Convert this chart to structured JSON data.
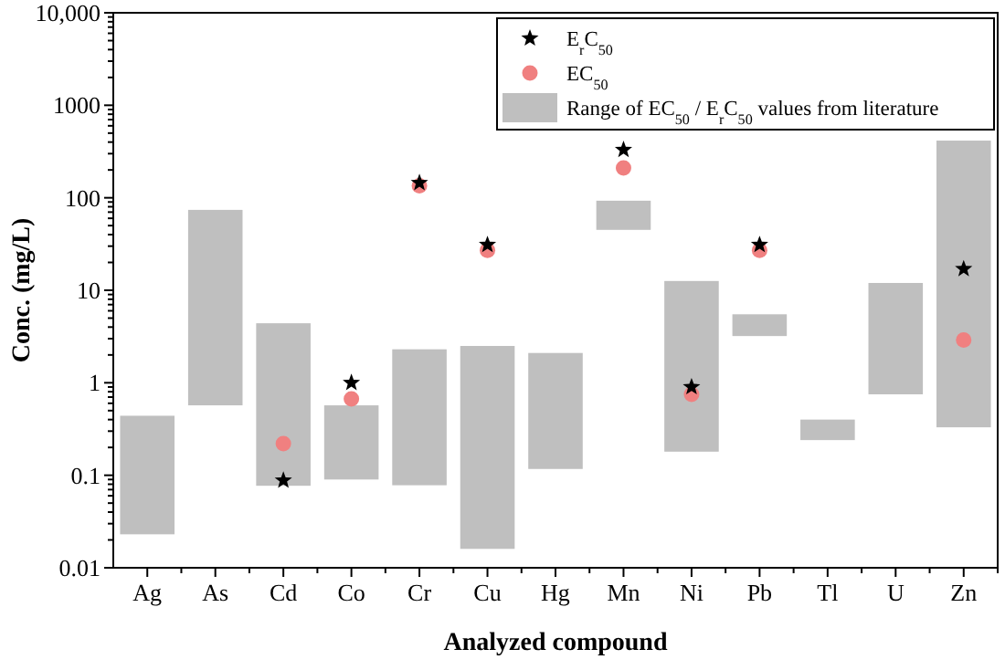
{
  "chart_data": {
    "type": "bar",
    "xlabel": "Analyzed compound",
    "ylabel": "Conc. (mg/L)",
    "log": true,
    "legend": "top right",
    "grid": false,
    "categories": [
      "Ag",
      "As",
      "Cd",
      "Co",
      "Cr",
      "Cu",
      "Hg",
      "Mn",
      "Ni",
      "Pb",
      "Tl",
      "U",
      "Zn"
    ],
    "ylim": [
      0.01,
      10000
    ],
    "yticks": [
      0.01,
      0.1,
      1,
      10,
      100,
      1000,
      {
        "value": 10000,
        "label": "10,000"
      }
    ],
    "series": [
      {
        "name": "Range of EC$_{50}$ / E$_{r}$C$_{50}$ values from literature",
        "color": "#bfbfbf",
        "base": [
          0.023,
          0.57,
          0.077,
          0.09,
          0.078,
          0.016,
          0.117,
          45,
          0.18,
          3.2,
          0.24,
          0.75,
          0.33
        ],
        "values": [
          0.417,
          73.43,
          4.323,
          0.48,
          2.222,
          2.484,
          1.983,
          48,
          12.42,
          2.3,
          0.16,
          11.25,
          414.67
        ]
      },
      {
        "type": "scatter",
        "name": "E$_{r}$C$_{50}$",
        "color": "#000000",
        "marker": "star",
        "values": [
          null,
          null,
          0.088,
          1.0,
          145,
          31,
          null,
          330,
          0.9,
          31,
          null,
          null,
          17
        ]
      },
      {
        "type": "scatter",
        "name": "EC$_{50}$",
        "color": "#f08080",
        "marker": "circle",
        "values": [
          null,
          null,
          0.22,
          0.67,
          135,
          27,
          null,
          210,
          0.75,
          27,
          null,
          null,
          2.9
        ]
      }
    ]
  }
}
